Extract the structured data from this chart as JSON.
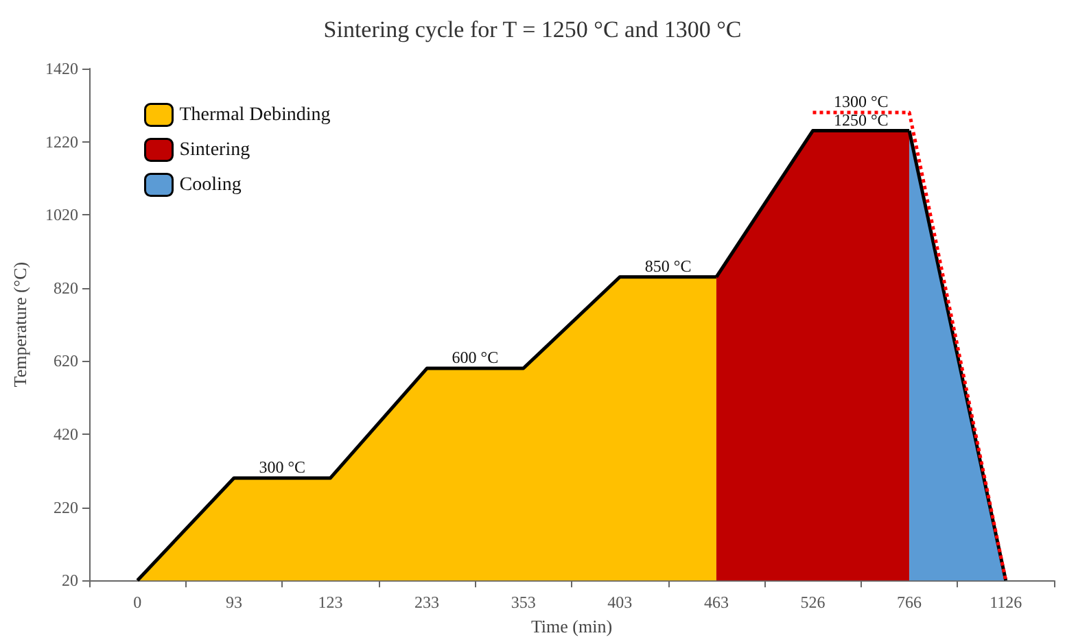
{
  "chart_data": {
    "type": "area",
    "title": "Sintering cycle for T = 1250 °C and 1300 °C",
    "xlabel": "Time (min)",
    "ylabel": "Temperature (°C)",
    "categories": [
      "0",
      "93",
      "123",
      "233",
      "353",
      "403",
      "463",
      "526",
      "766",
      "1126"
    ],
    "series": [
      {
        "name": "Thermal Debinding",
        "color": "#ffc000",
        "values": [
          20,
          300,
          300,
          600,
          600,
          850,
          850,
          null,
          null,
          null
        ]
      },
      {
        "name": "Sintering",
        "color": "#c00000",
        "values": [
          null,
          null,
          null,
          null,
          null,
          null,
          850,
          1250,
          1250,
          null
        ]
      },
      {
        "name": "Cooling",
        "color": "#5b9bd5",
        "values": [
          null,
          null,
          null,
          null,
          null,
          null,
          null,
          null,
          1250,
          20
        ]
      },
      {
        "type": "line",
        "color": "#ff0000",
        "line_style": "dotted",
        "values": [
          null,
          null,
          null,
          null,
          null,
          null,
          null,
          1300,
          1300,
          20
        ]
      }
    ],
    "annotations": [
      {
        "text": "300 °C",
        "x": "93",
        "y": 300
      },
      {
        "text": "600 °C",
        "x": "233",
        "y": 600
      },
      {
        "text": "850 °C",
        "x": "403",
        "y": 850
      },
      {
        "text": "1250 °C",
        "x": "526",
        "y": 1250
      },
      {
        "text": "1300 °C",
        "x": "526",
        "y": 1300
      }
    ],
    "ylim": [
      20,
      1420
    ],
    "yticks": [
      20,
      220,
      420,
      620,
      820,
      1020,
      1220,
      1420
    ],
    "grid": false,
    "legend": "top left",
    "marker": "none"
  }
}
